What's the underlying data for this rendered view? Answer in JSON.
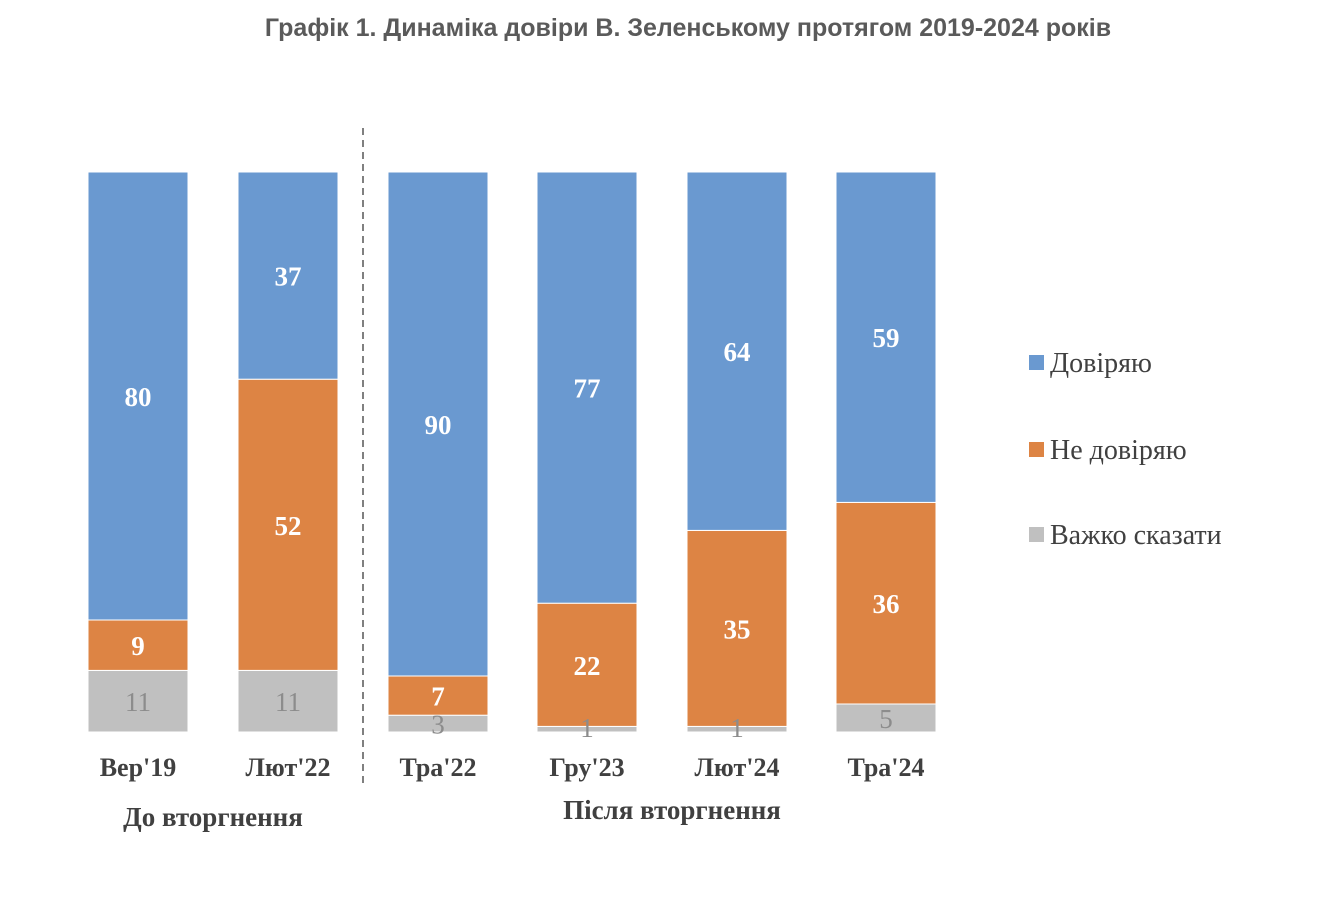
{
  "chart_data": {
    "type": "bar",
    "stacked": true,
    "normalized_to": 100,
    "title": "Графік 1. Динаміка довіри В. Зеленському протягом 2019-2024 років",
    "categories": [
      "Вер'19",
      "Лют'22",
      "Тра'22",
      "Гру'23",
      "Лют'24",
      "Тра'24"
    ],
    "series": [
      {
        "name": "Важко сказати",
        "color": "#c0c0c0",
        "values": [
          11,
          11,
          3,
          1,
          1,
          5
        ]
      },
      {
        "name": "Не довіряю",
        "color": "#dd8444",
        "values": [
          9,
          52,
          7,
          22,
          35,
          36
        ]
      },
      {
        "name": "Довіряю",
        "color": "#6a99d0",
        "values": [
          80,
          37,
          90,
          77,
          64,
          59
        ]
      }
    ],
    "groups": [
      {
        "label": "До вторгнення",
        "categories": [
          0,
          1
        ]
      },
      {
        "label": "Після вторгнення",
        "categories": [
          2,
          3,
          4,
          5
        ]
      }
    ],
    "separator_after_category": 1,
    "legend": {
      "position": "right",
      "order": [
        "Довіряю",
        "Не довіряю",
        "Важко сказати"
      ]
    }
  }
}
